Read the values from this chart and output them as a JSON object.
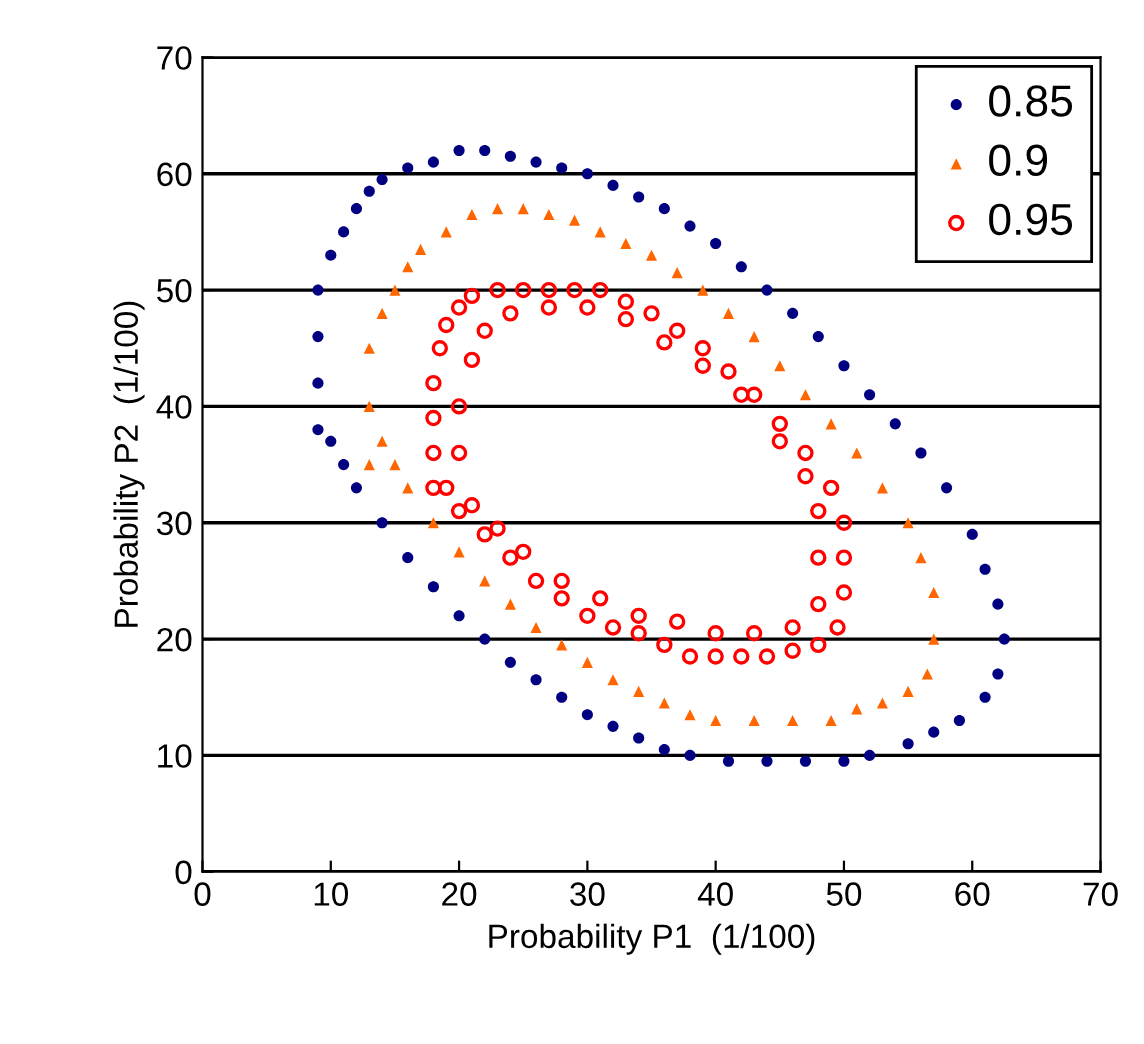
{
  "chart_data": {
    "type": "scatter",
    "xlabel": "Probability P1  (1/100)",
    "ylabel": "Probability P2  (1/100)",
    "xlim": [
      0,
      70
    ],
    "ylim": [
      0,
      70
    ],
    "xticks": [
      0,
      10,
      20,
      30,
      40,
      50,
      60,
      70
    ],
    "yticks": [
      0,
      10,
      20,
      30,
      40,
      50,
      60,
      70
    ],
    "grid": "y",
    "legend": "top right",
    "series": [
      {
        "name": "0.85",
        "color": "#000080",
        "marker": "circle",
        "x": [
          9,
          9,
          9,
          9,
          10,
          11,
          12,
          13,
          14,
          16,
          18,
          20,
          22,
          24,
          26,
          28,
          30,
          32,
          34,
          36,
          38,
          40,
          42,
          44,
          46,
          48,
          50,
          52,
          54,
          56,
          58,
          60,
          61,
          62,
          62.5,
          62,
          61,
          59,
          57,
          55,
          52,
          50,
          47,
          44,
          41,
          38,
          36,
          34,
          32,
          30,
          28,
          26,
          24,
          22,
          20,
          18,
          16,
          14,
          12,
          11,
          10
        ],
        "values": [
          38,
          42,
          46,
          50,
          53,
          55,
          57,
          58.5,
          59.5,
          60.5,
          61,
          62,
          62,
          61.5,
          61,
          60.5,
          60,
          59,
          58,
          57,
          55.5,
          54,
          52,
          50,
          48,
          46,
          43.5,
          41,
          38.5,
          36,
          33,
          29,
          26,
          23,
          20,
          17,
          15,
          13,
          12,
          11,
          10,
          9.5,
          9.5,
          9.5,
          9.5,
          10,
          10.5,
          11.5,
          12.5,
          13.5,
          15,
          16.5,
          18,
          20,
          22,
          24.5,
          27,
          30,
          33,
          35,
          37
        ]
      },
      {
        "name": "0.9",
        "color": "#ff6600",
        "marker": "triangle",
        "x": [
          13,
          13,
          13,
          14,
          15,
          16,
          17,
          19,
          21,
          23,
          25,
          27,
          29,
          31,
          33,
          35,
          37,
          39,
          41,
          43,
          45,
          47,
          49,
          51,
          53,
          55,
          56,
          57,
          57,
          56.5,
          55,
          53,
          51,
          49,
          46,
          43,
          40,
          38,
          36,
          34,
          32,
          30,
          28,
          26,
          24,
          22,
          20,
          18,
          16,
          15,
          14
        ],
        "values": [
          35,
          40,
          45,
          48,
          50,
          52,
          53.5,
          55,
          56.5,
          57,
          57,
          56.5,
          56,
          55,
          54,
          53,
          51.5,
          50,
          48,
          46,
          43.5,
          41,
          38.5,
          36,
          33,
          30,
          27,
          24,
          20,
          17,
          15.5,
          14.5,
          14,
          13,
          13,
          13,
          13,
          13.5,
          14.5,
          15.5,
          16.5,
          18,
          19.5,
          21,
          23,
          25,
          27.5,
          30,
          33,
          35,
          37
        ]
      },
      {
        "name": "0.95",
        "color": "#ff0000",
        "marker": "open circle",
        "x": [
          18,
          18,
          18,
          18,
          18.5,
          19,
          20,
          21,
          23,
          25,
          27,
          29,
          31,
          33,
          35,
          37,
          39,
          41,
          43,
          45,
          47,
          49,
          50,
          50,
          50,
          49.5,
          48,
          46,
          44,
          42,
          40,
          38,
          36,
          34,
          32,
          30,
          28,
          26,
          24,
          22,
          20,
          19,
          20,
          20,
          21,
          22,
          24,
          27,
          30,
          33,
          36,
          39,
          42,
          45,
          47,
          48,
          48,
          48,
          46,
          43,
          40,
          37,
          34,
          31,
          28,
          25,
          23,
          21
        ],
        "values": [
          33,
          36,
          39,
          42,
          45,
          47,
          48.5,
          49.5,
          50,
          50,
          50,
          50,
          50,
          49,
          48,
          46.5,
          45,
          43,
          41,
          38.5,
          36,
          33,
          30,
          27,
          24,
          21,
          19.5,
          19,
          18.5,
          18.5,
          18.5,
          18.5,
          19.5,
          20.5,
          21,
          22,
          23.5,
          25,
          27,
          29,
          31,
          33,
          36,
          40,
          44,
          46.5,
          48,
          48.5,
          48.5,
          47.5,
          45.5,
          43.5,
          41,
          37,
          34,
          31,
          27,
          23,
          21,
          20.5,
          20.5,
          21.5,
          22,
          23.5,
          25,
          27.5,
          29.5,
          31.5
        ]
      }
    ]
  }
}
